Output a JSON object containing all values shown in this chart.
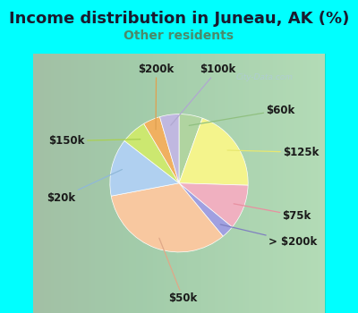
{
  "title": "Income distribution in Juneau, AK (%)",
  "subtitle": "Other residents",
  "title_color": "#1a1a2e",
  "subtitle_color": "#4a8a6a",
  "background_outer": "#00ffff",
  "watermark": "City-Data.com",
  "labels": [
    "$60k",
    "$125k",
    "$75k",
    "> $200k",
    "$50k",
    "$20k",
    "$150k",
    "$200k",
    "$100k"
  ],
  "values": [
    5.5,
    20.0,
    10.5,
    3.0,
    33.0,
    13.5,
    6.0,
    4.0,
    4.5
  ],
  "colors": [
    "#b0d4a0",
    "#f4f48c",
    "#f0b0c0",
    "#a0a0e0",
    "#f8c8a0",
    "#b0d0f0",
    "#cce870",
    "#f0b060",
    "#c0b8e0"
  ],
  "line_colors": [
    "#90c080",
    "#e8e870",
    "#e890a0",
    "#8080c0",
    "#e0a888",
    "#90b8d8",
    "#aad050",
    "#e0a050",
    "#b0a8d0"
  ],
  "label_fontsize": 8.5,
  "title_fontsize": 13,
  "subtitle_fontsize": 10
}
